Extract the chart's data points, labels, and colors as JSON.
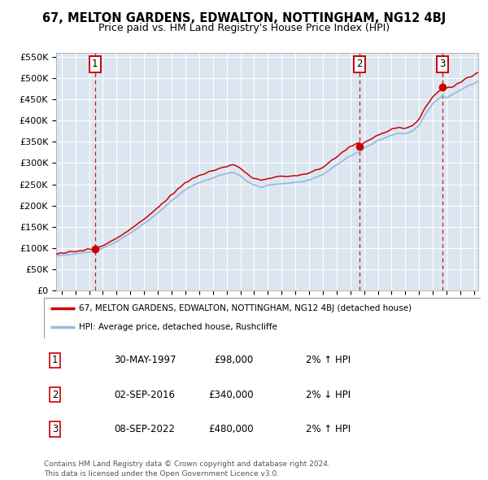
{
  "title": "67, MELTON GARDENS, EDWALTON, NOTTINGHAM, NG12 4BJ",
  "subtitle": "Price paid vs. HM Land Registry's House Price Index (HPI)",
  "ylim": [
    0,
    560000
  ],
  "xlim_start": 1994.6,
  "xlim_end": 2025.3,
  "yticks": [
    0,
    50000,
    100000,
    150000,
    200000,
    250000,
    300000,
    350000,
    400000,
    450000,
    500000,
    550000
  ],
  "ytick_labels": [
    "£0",
    "£50K",
    "£100K",
    "£150K",
    "£200K",
    "£250K",
    "£300K",
    "£350K",
    "£400K",
    "£450K",
    "£500K",
    "£550K"
  ],
  "xtick_years": [
    1995,
    1996,
    1997,
    1998,
    1999,
    2000,
    2001,
    2002,
    2003,
    2004,
    2005,
    2006,
    2007,
    2008,
    2009,
    2010,
    2011,
    2012,
    2013,
    2014,
    2015,
    2016,
    2017,
    2018,
    2019,
    2020,
    2021,
    2022,
    2023,
    2024,
    2025
  ],
  "sale_dates": [
    1997.415,
    2016.671,
    2022.689
  ],
  "sale_prices": [
    98000,
    340000,
    480000
  ],
  "sale_labels": [
    "1",
    "2",
    "3"
  ],
  "red_color": "#cc0000",
  "blue_color": "#99bbdd",
  "bg_color": "#dce6f1",
  "grid_color": "#ffffff",
  "legend_label_red": "67, MELTON GARDENS, EDWALTON, NOTTINGHAM, NG12 4BJ (detached house)",
  "legend_label_blue": "HPI: Average price, detached house, Rushcliffe",
  "table_entries": [
    {
      "num": "1",
      "date": "30-MAY-1997",
      "price": "£98,000",
      "hpi": "2% ↑ HPI"
    },
    {
      "num": "2",
      "date": "02-SEP-2016",
      "price": "£340,000",
      "hpi": "2% ↓ HPI"
    },
    {
      "num": "3",
      "date": "08-SEP-2022",
      "price": "£480,000",
      "hpi": "2% ↑ HPI"
    }
  ],
  "footer_text": "Contains HM Land Registry data © Crown copyright and database right 2024.\nThis data is licensed under the Open Government Licence v3.0.",
  "hpi_nodes_t": [
    1994.6,
    1995.0,
    1996.0,
    1997.0,
    1997.415,
    1998.0,
    1999.0,
    2000.0,
    2001.0,
    2002.0,
    2003.0,
    2004.0,
    2005.0,
    2006.0,
    2007.0,
    2007.5,
    2008.0,
    2008.5,
    2009.0,
    2009.5,
    2010.0,
    2011.0,
    2012.0,
    2013.0,
    2014.0,
    2015.0,
    2016.0,
    2016.671,
    2017.0,
    2017.5,
    2018.0,
    2018.5,
    2019.0,
    2019.5,
    2020.0,
    2020.5,
    2021.0,
    2021.5,
    2022.0,
    2022.689,
    2023.0,
    2023.5,
    2024.0,
    2024.5,
    2025.3
  ],
  "hpi_nodes_v": [
    82000,
    83000,
    86000,
    90000,
    92000,
    100000,
    115000,
    135000,
    158000,
    183000,
    212000,
    238000,
    255000,
    265000,
    275000,
    278000,
    270000,
    258000,
    248000,
    244000,
    248000,
    252000,
    254000,
    260000,
    272000,
    295000,
    318000,
    328000,
    335000,
    343000,
    353000,
    360000,
    366000,
    370000,
    368000,
    375000,
    390000,
    418000,
    440000,
    460000,
    455000,
    462000,
    472000,
    480000,
    492000
  ]
}
